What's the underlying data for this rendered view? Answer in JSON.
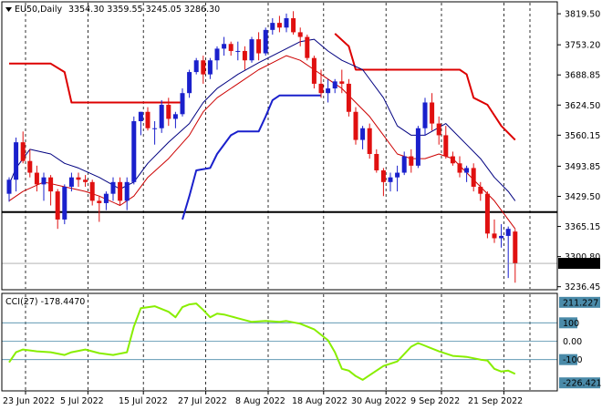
{
  "header": {
    "symbol": "EU50,Daily",
    "ohlc": "3354.30 3359.55 3245.05 3286.30",
    "cci_title": "CCI(27) -178.4470"
  },
  "colors": {
    "bull": "#1a20cc",
    "bear": "#e01010",
    "ma_fast": "#cc0000",
    "ma_slow": "#000080",
    "stop_red": "#dd0000",
    "stop_blue": "#1a20cc",
    "level_line": "#000000",
    "cci": "#88ee00",
    "cci_level": "#4a8aa8",
    "grid": "#000000"
  },
  "chart_data": [
    {
      "type": "candlestick",
      "title": "EU50,Daily",
      "ylim": [
        3230,
        3845
      ],
      "y_ticks": [
        "3819.50",
        "3753.20",
        "3688.85",
        "3624.50",
        "3560.15",
        "3493.85",
        "3429.50",
        "3365.15",
        "3300.80",
        "3236.45"
      ],
      "x_labels": [
        "23 Jun 2022",
        "5 Jul 2022",
        "15 Jul 2022",
        "27 Jul 2022",
        "8 Aug 2022",
        "18 Aug 2022",
        "30 Aug 2022",
        "9 Sep 2022",
        "21 Sep 2022"
      ],
      "x_label_bars": [
        0,
        9,
        17,
        26,
        35,
        43,
        52,
        60,
        69
      ],
      "grid": "dotted vertical",
      "last_price": "3286.30",
      "horizontal_level": 3396,
      "ohlc": [
        [
          3435,
          3470,
          3418,
          3465
        ],
        [
          3465,
          3555,
          3440,
          3545
        ],
        [
          3545,
          3568,
          3500,
          3505
        ],
        [
          3505,
          3530,
          3470,
          3480
        ],
        [
          3480,
          3495,
          3440,
          3455
        ],
        [
          3455,
          3480,
          3420,
          3470
        ],
        [
          3470,
          3475,
          3410,
          3440
        ],
        [
          3440,
          3445,
          3360,
          3380
        ],
        [
          3380,
          3455,
          3370,
          3450
        ],
        [
          3450,
          3480,
          3440,
          3470
        ],
        [
          3470,
          3480,
          3450,
          3465
        ],
        [
          3465,
          3475,
          3450,
          3460
        ],
        [
          3460,
          3465,
          3410,
          3420
        ],
        [
          3420,
          3430,
          3375,
          3415
        ],
        [
          3415,
          3440,
          3400,
          3435
        ],
        [
          3435,
          3470,
          3420,
          3460
        ],
        [
          3460,
          3470,
          3410,
          3420
        ],
        [
          3420,
          3470,
          3400,
          3460
        ],
        [
          3460,
          3600,
          3455,
          3590
        ],
        [
          3590,
          3610,
          3560,
          3610
        ],
        [
          3610,
          3620,
          3570,
          3575
        ],
        [
          3575,
          3590,
          3540,
          3575
        ],
        [
          3575,
          3635,
          3565,
          3625
        ],
        [
          3625,
          3640,
          3580,
          3595
        ],
        [
          3595,
          3610,
          3575,
          3605
        ],
        [
          3605,
          3660,
          3600,
          3650
        ],
        [
          3650,
          3700,
          3640,
          3695
        ],
        [
          3695,
          3725,
          3690,
          3720
        ],
        [
          3720,
          3730,
          3670,
          3690
        ],
        [
          3690,
          3725,
          3680,
          3720
        ],
        [
          3720,
          3750,
          3700,
          3745
        ],
        [
          3745,
          3770,
          3730,
          3755
        ],
        [
          3755,
          3760,
          3730,
          3740
        ],
        [
          3740,
          3760,
          3720,
          3740
        ],
        [
          3740,
          3750,
          3700,
          3720
        ],
        [
          3720,
          3770,
          3715,
          3765
        ],
        [
          3765,
          3780,
          3720,
          3735
        ],
        [
          3735,
          3790,
          3730,
          3785
        ],
        [
          3785,
          3810,
          3775,
          3800
        ],
        [
          3800,
          3815,
          3780,
          3790
        ],
        [
          3790,
          3820,
          3780,
          3810
        ],
        [
          3810,
          3825,
          3775,
          3780
        ],
        [
          3780,
          3790,
          3750,
          3770
        ],
        [
          3770,
          3775,
          3720,
          3725
        ],
        [
          3725,
          3730,
          3660,
          3670
        ],
        [
          3670,
          3700,
          3640,
          3650
        ],
        [
          3650,
          3680,
          3630,
          3660
        ],
        [
          3660,
          3680,
          3650,
          3675
        ],
        [
          3675,
          3700,
          3650,
          3670
        ],
        [
          3670,
          3680,
          3600,
          3610
        ],
        [
          3610,
          3620,
          3540,
          3550
        ],
        [
          3550,
          3580,
          3530,
          3575
        ],
        [
          3575,
          3585,
          3510,
          3520
        ],
        [
          3520,
          3530,
          3480,
          3485
        ],
        [
          3485,
          3490,
          3430,
          3460
        ],
        [
          3460,
          3480,
          3440,
          3470
        ],
        [
          3470,
          3495,
          3440,
          3480
        ],
        [
          3480,
          3525,
          3475,
          3515
        ],
        [
          3515,
          3530,
          3480,
          3495
        ],
        [
          3495,
          3580,
          3490,
          3575
        ],
        [
          3575,
          3640,
          3560,
          3630
        ],
        [
          3630,
          3650,
          3570,
          3585
        ],
        [
          3585,
          3600,
          3540,
          3560
        ],
        [
          3560,
          3580,
          3510,
          3515
        ],
        [
          3515,
          3525,
          3495,
          3500
        ],
        [
          3500,
          3515,
          3470,
          3480
        ],
        [
          3480,
          3495,
          3460,
          3490
        ],
        [
          3490,
          3500,
          3440,
          3450
        ],
        [
          3450,
          3460,
          3420,
          3435
        ],
        [
          3435,
          3440,
          3340,
          3350
        ],
        [
          3350,
          3380,
          3330,
          3340
        ],
        [
          3340,
          3370,
          3320,
          3345
        ],
        [
          3345,
          3365,
          3255,
          3360
        ],
        [
          3354.3,
          3359.55,
          3245.05,
          3286.3
        ]
      ],
      "ma_fast": [
        3420,
        3432,
        3442,
        3450,
        3455,
        3458,
        3458,
        3452,
        3448,
        3447,
        3445,
        3443,
        3438,
        3432,
        3428,
        3428,
        3425,
        3428,
        3445,
        3465,
        3482,
        3495,
        3510,
        3520,
        3530,
        3545,
        3565,
        3585,
        3600,
        3615,
        3632,
        3648,
        3660,
        3668,
        3675,
        3688,
        3695,
        3710,
        3725,
        3735,
        3745,
        3752,
        3755,
        3752,
        3745,
        3735,
        3728,
        3722,
        3715,
        3700,
        3682,
        3670,
        3650,
        3628,
        3605,
        3585,
        3565,
        3555,
        3545,
        3548,
        3560,
        3565,
        3565,
        3558,
        3548,
        3535,
        3525,
        3512,
        3498,
        3470,
        3445,
        3420,
        3400,
        3380
      ],
      "ma_slow": [
        null,
        null,
        null,
        null,
        null,
        null,
        null,
        null,
        null,
        null,
        null,
        null,
        null,
        null,
        null,
        null,
        null,
        null,
        null,
        null,
        null,
        null,
        null,
        null,
        null,
        null,
        null,
        null,
        null,
        null,
        null,
        null,
        null,
        null,
        null,
        null,
        null,
        null,
        null,
        null,
        null,
        null,
        null,
        null,
        null,
        null,
        null,
        null,
        null,
        null,
        null,
        null,
        null,
        null,
        null,
        null,
        null,
        null,
        null,
        null,
        null,
        null,
        null,
        null,
        null,
        null,
        null,
        null,
        null,
        null,
        null,
        null,
        null,
        null
      ],
      "ma_slow_points": [
        [
          0,
          3455
        ],
        [
          1,
          3490
        ],
        [
          3,
          3530
        ],
        [
          6,
          3520
        ],
        [
          8,
          3500
        ],
        [
          10,
          3490
        ],
        [
          13,
          3470
        ],
        [
          16,
          3445
        ],
        [
          18,
          3460
        ],
        [
          20,
          3500
        ],
        [
          23,
          3545
        ],
        [
          26,
          3585
        ],
        [
          28,
          3630
        ],
        [
          30,
          3660
        ],
        [
          33,
          3690
        ],
        [
          36,
          3715
        ],
        [
          40,
          3745
        ],
        [
          42,
          3760
        ],
        [
          44,
          3765
        ],
        [
          46,
          3740
        ],
        [
          48,
          3720
        ],
        [
          51,
          3700
        ],
        [
          54,
          3640
        ],
        [
          56,
          3580
        ],
        [
          58,
          3560
        ],
        [
          60,
          3560
        ],
        [
          63,
          3585
        ],
        [
          66,
          3540
        ],
        [
          68,
          3510
        ],
        [
          70,
          3470
        ],
        [
          72,
          3440
        ],
        [
          73,
          3420
        ]
      ],
      "ma_fast_points": [
        [
          0,
          3420
        ],
        [
          2,
          3440
        ],
        [
          5,
          3460
        ],
        [
          8,
          3450
        ],
        [
          11,
          3440
        ],
        [
          13,
          3430
        ],
        [
          16,
          3410
        ],
        [
          18,
          3430
        ],
        [
          20,
          3470
        ],
        [
          23,
          3510
        ],
        [
          26,
          3560
        ],
        [
          28,
          3610
        ],
        [
          30,
          3640
        ],
        [
          33,
          3670
        ],
        [
          36,
          3700
        ],
        [
          38,
          3715
        ],
        [
          40,
          3730
        ],
        [
          42,
          3720
        ],
        [
          44,
          3700
        ],
        [
          46,
          3680
        ],
        [
          48,
          3660
        ],
        [
          50,
          3630
        ],
        [
          52,
          3600
        ],
        [
          54,
          3560
        ],
        [
          56,
          3520
        ],
        [
          58,
          3510
        ],
        [
          60,
          3510
        ],
        [
          62,
          3520
        ],
        [
          64,
          3510
        ],
        [
          66,
          3480
        ],
        [
          68,
          3450
        ],
        [
          70,
          3420
        ],
        [
          72,
          3380
        ],
        [
          73,
          3360
        ]
      ],
      "stop_red_segments": [
        [
          [
            0,
            3713
          ],
          [
            6,
            3713
          ],
          [
            8,
            3695
          ],
          [
            9,
            3630
          ],
          [
            25,
            3630
          ]
        ],
        [
          [
            47,
            3777
          ],
          [
            49,
            3750
          ],
          [
            50,
            3700
          ],
          [
            64,
            3700
          ],
          [
            65,
            3700
          ],
          [
            66,
            3690
          ],
          [
            67,
            3640
          ],
          [
            69,
            3625
          ],
          [
            71,
            3580
          ],
          [
            73,
            3550
          ]
        ]
      ],
      "stop_blue_segments": [
        [
          [
            25,
            3380
          ],
          [
            26,
            3430
          ],
          [
            27,
            3485
          ],
          [
            29,
            3490
          ],
          [
            30,
            3520
          ],
          [
            32,
            3560
          ],
          [
            33,
            3568
          ],
          [
            36,
            3568
          ],
          [
            37,
            3600
          ],
          [
            38,
            3635
          ],
          [
            39,
            3645
          ],
          [
            45,
            3645
          ]
        ]
      ]
    },
    {
      "type": "line",
      "title": "CCI(27) -178.4470",
      "ylim": [
        -270,
        260
      ],
      "y_ticks": [
        "211.227",
        "100",
        "0.00",
        "-100",
        "-226.4214"
      ],
      "levels": [
        100,
        0,
        -100
      ],
      "series": [
        {
          "name": "CCI(27)",
          "points": [
            [
              0,
              -115
            ],
            [
              1,
              -60
            ],
            [
              2,
              -45
            ],
            [
              4,
              -55
            ],
            [
              6,
              -60
            ],
            [
              8,
              -75
            ],
            [
              9,
              -60
            ],
            [
              11,
              -45
            ],
            [
              13,
              -65
            ],
            [
              15,
              -75
            ],
            [
              17,
              -60
            ],
            [
              18,
              80
            ],
            [
              19,
              180
            ],
            [
              21,
              190
            ],
            [
              23,
              160
            ],
            [
              24,
              130
            ],
            [
              25,
              185
            ],
            [
              26,
              200
            ],
            [
              27,
              205
            ],
            [
              28,
              170
            ],
            [
              29,
              130
            ],
            [
              30,
              150
            ],
            [
              31,
              145
            ],
            [
              33,
              125
            ],
            [
              35,
              105
            ],
            [
              37,
              110
            ],
            [
              39,
              105
            ],
            [
              40,
              110
            ],
            [
              42,
              95
            ],
            [
              44,
              65
            ],
            [
              46,
              5
            ],
            [
              47,
              -60
            ],
            [
              48,
              -150
            ],
            [
              49,
              -160
            ],
            [
              50,
              -190
            ],
            [
              51,
              -210
            ],
            [
              52,
              -185
            ],
            [
              54,
              -135
            ],
            [
              56,
              -110
            ],
            [
              58,
              -30
            ],
            [
              59,
              -10
            ],
            [
              60,
              -25
            ],
            [
              62,
              -55
            ],
            [
              64,
              -80
            ],
            [
              66,
              -85
            ],
            [
              68,
              -100
            ],
            [
              69,
              -105
            ],
            [
              70,
              -150
            ],
            [
              71,
              -165
            ],
            [
              72,
              -160
            ],
            [
              73,
              -178
            ]
          ]
        }
      ]
    }
  ]
}
